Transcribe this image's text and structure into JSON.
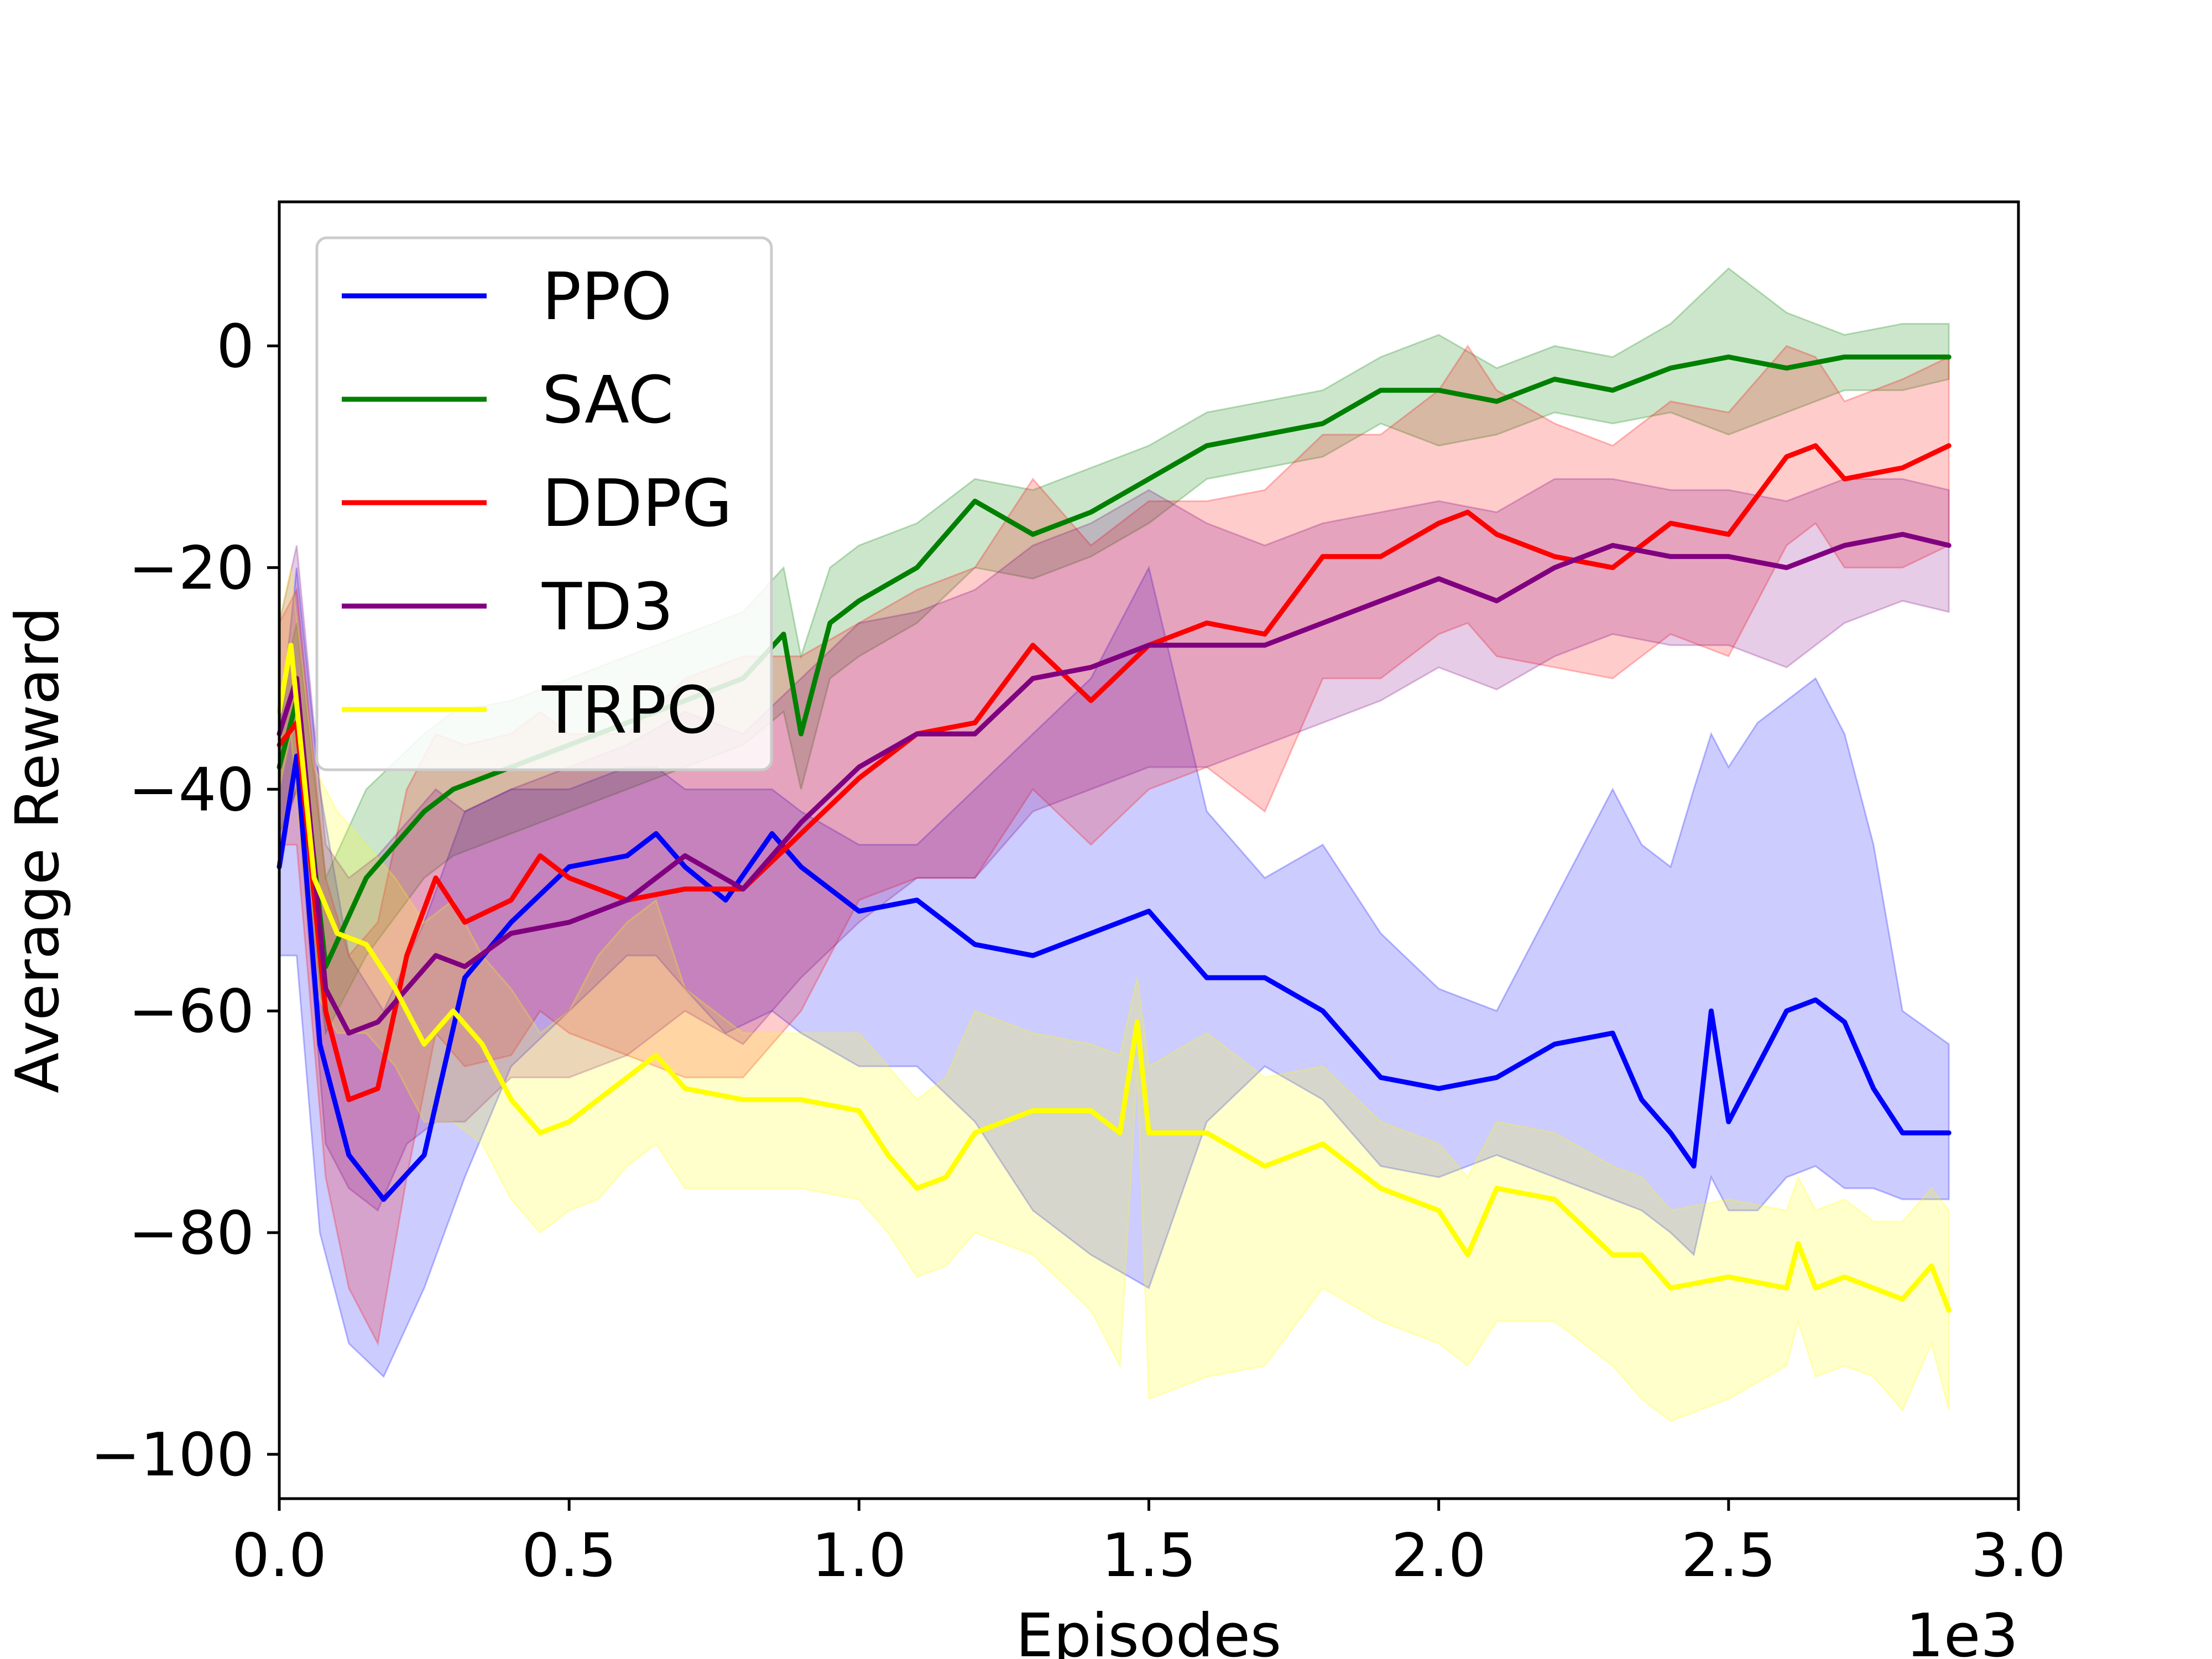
{
  "chart_data": {
    "type": "line",
    "title": "",
    "xlabel": "Episodes",
    "ylabel": "Average Reward",
    "x_multiplier": "1e3",
    "xlim": [
      0,
      3.0
    ],
    "ylim": [
      -104,
      13
    ],
    "x_ticks": [
      0.0,
      0.5,
      1.0,
      1.5,
      2.0,
      2.5,
      3.0
    ],
    "x_tick_labels": [
      "0.0",
      "0.5",
      "1.0",
      "1.5",
      "2.0",
      "2.5",
      "3.0"
    ],
    "y_ticks": [
      0,
      -20,
      -40,
      -60,
      -80,
      -100
    ],
    "y_tick_labels": [
      "0",
      "−20",
      "−40",
      "−60",
      "−80",
      "−100"
    ],
    "grid": false,
    "legend_position": "top-left",
    "series": [
      {
        "name": "PPO",
        "color": "#0000ff",
        "fill_color": "#0000ff",
        "x": [
          0.0,
          0.03,
          0.07,
          0.12,
          0.18,
          0.25,
          0.32,
          0.4,
          0.5,
          0.6,
          0.65,
          0.7,
          0.77,
          0.85,
          0.9,
          1.0,
          1.1,
          1.2,
          1.3,
          1.4,
          1.5,
          1.6,
          1.7,
          1.8,
          1.9,
          2.0,
          2.1,
          2.2,
          2.3,
          2.35,
          2.4,
          2.44,
          2.47,
          2.5,
          2.55,
          2.6,
          2.65,
          2.7,
          2.75,
          2.8,
          2.88
        ],
        "mean": [
          -47,
          -37,
          -63,
          -73,
          -77,
          -73,
          -57,
          -52,
          -47,
          -46,
          -44,
          -47,
          -50,
          -44,
          -47,
          -51,
          -50,
          -54,
          -55,
          -53,
          -51,
          -57,
          -57,
          -60,
          -66,
          -67,
          -66,
          -63,
          -62,
          -68,
          -71,
          -74,
          -60,
          -70,
          -65,
          -60,
          -59,
          -61,
          -67,
          -71,
          -71
        ],
        "upper": [
          -35,
          -20,
          -40,
          -55,
          -60,
          -52,
          -42,
          -40,
          -40,
          -38,
          -38,
          -40,
          -40,
          -40,
          -42,
          -45,
          -45,
          -40,
          -35,
          -30,
          -20,
          -42,
          -48,
          -45,
          -53,
          -58,
          -60,
          -50,
          -40,
          -45,
          -47,
          -40,
          -35,
          -38,
          -34,
          -32,
          -30,
          -35,
          -45,
          -60,
          -63
        ],
        "lower": [
          -55,
          -55,
          -80,
          -90,
          -93,
          -85,
          -75,
          -65,
          -60,
          -55,
          -55,
          -58,
          -62,
          -60,
          -62,
          -65,
          -65,
          -70,
          -78,
          -82,
          -85,
          -70,
          -65,
          -68,
          -74,
          -75,
          -73,
          -75,
          -77,
          -78,
          -80,
          -82,
          -75,
          -78,
          -78,
          -75,
          -74,
          -76,
          -76,
          -77,
          -77
        ]
      },
      {
        "name": "SAC",
        "color": "#008000",
        "fill_color": "#008000",
        "x": [
          0.0,
          0.03,
          0.08,
          0.15,
          0.25,
          0.3,
          0.4,
          0.5,
          0.6,
          0.7,
          0.8,
          0.87,
          0.9,
          0.95,
          1.0,
          1.1,
          1.2,
          1.3,
          1.4,
          1.5,
          1.6,
          1.7,
          1.8,
          1.9,
          2.0,
          2.1,
          2.2,
          2.3,
          2.4,
          2.5,
          2.6,
          2.7,
          2.8,
          2.88
        ],
        "mean": [
          -38,
          -32,
          -56,
          -48,
          -42,
          -40,
          -38,
          -36,
          -34,
          -32,
          -30,
          -26,
          -35,
          -25,
          -23,
          -20,
          -14,
          -17,
          -15,
          -12,
          -9,
          -8,
          -7,
          -4,
          -4,
          -5,
          -3,
          -4,
          -2,
          -1,
          -2,
          -1,
          -1,
          -1
        ],
        "upper": [
          -32,
          -25,
          -48,
          -40,
          -35,
          -33,
          -32,
          -30,
          -28,
          -26,
          -24,
          -20,
          -28,
          -20,
          -18,
          -16,
          -12,
          -13,
          -11,
          -9,
          -6,
          -5,
          -4,
          -1,
          1,
          -2,
          0,
          -1,
          2,
          7,
          3,
          1,
          2,
          2
        ],
        "lower": [
          -44,
          -40,
          -62,
          -55,
          -48,
          -46,
          -44,
          -42,
          -40,
          -38,
          -36,
          -33,
          -40,
          -30,
          -28,
          -25,
          -20,
          -21,
          -19,
          -16,
          -12,
          -11,
          -10,
          -7,
          -9,
          -8,
          -6,
          -7,
          -6,
          -8,
          -6,
          -4,
          -4,
          -3
        ]
      },
      {
        "name": "DDPG",
        "color": "#ff0000",
        "fill_color": "#ff0000",
        "x": [
          0.0,
          0.03,
          0.08,
          0.12,
          0.17,
          0.22,
          0.27,
          0.32,
          0.4,
          0.45,
          0.5,
          0.6,
          0.7,
          0.8,
          0.9,
          1.0,
          1.1,
          1.2,
          1.3,
          1.4,
          1.5,
          1.6,
          1.7,
          1.8,
          1.9,
          2.0,
          2.05,
          2.1,
          2.2,
          2.3,
          2.4,
          2.5,
          2.6,
          2.65,
          2.7,
          2.8,
          2.88
        ],
        "mean": [
          -36,
          -34,
          -60,
          -68,
          -67,
          -55,
          -48,
          -52,
          -50,
          -46,
          -48,
          -50,
          -49,
          -49,
          -44,
          -39,
          -35,
          -34,
          -27,
          -32,
          -27,
          -25,
          -26,
          -19,
          -19,
          -16,
          -15,
          -17,
          -19,
          -20,
          -16,
          -17,
          -10,
          -9,
          -12,
          -11,
          -9
        ],
        "upper": [
          -25,
          -22,
          -48,
          -55,
          -52,
          -40,
          -35,
          -36,
          -35,
          -33,
          -35,
          -35,
          -30,
          -28,
          -28,
          -25,
          -22,
          -20,
          -12,
          -18,
          -14,
          -14,
          -13,
          -8,
          -8,
          -4,
          0,
          -4,
          -7,
          -9,
          -5,
          -6,
          0,
          -1,
          -5,
          -3,
          -1
        ],
        "lower": [
          -45,
          -45,
          -75,
          -85,
          -90,
          -75,
          -62,
          -65,
          -64,
          -60,
          -62,
          -64,
          -66,
          -66,
          -60,
          -50,
          -48,
          -48,
          -40,
          -45,
          -40,
          -38,
          -42,
          -30,
          -30,
          -26,
          -25,
          -28,
          -29,
          -30,
          -26,
          -28,
          -18,
          -16,
          -20,
          -20,
          -18
        ]
      },
      {
        "name": "TD3",
        "color": "#800080",
        "fill_color": "#800080",
        "x": [
          0.0,
          0.03,
          0.08,
          0.12,
          0.17,
          0.22,
          0.27,
          0.32,
          0.4,
          0.5,
          0.6,
          0.7,
          0.8,
          0.9,
          1.0,
          1.1,
          1.2,
          1.3,
          1.4,
          1.5,
          1.6,
          1.7,
          1.8,
          1.9,
          2.0,
          2.1,
          2.2,
          2.3,
          2.4,
          2.5,
          2.6,
          2.7,
          2.8,
          2.88
        ],
        "mean": [
          -35,
          -30,
          -58,
          -62,
          -61,
          -58,
          -55,
          -56,
          -53,
          -52,
          -50,
          -46,
          -49,
          -43,
          -38,
          -35,
          -35,
          -30,
          -29,
          -27,
          -27,
          -27,
          -25,
          -23,
          -21,
          -23,
          -20,
          -18,
          -19,
          -19,
          -20,
          -18,
          -17,
          -18
        ],
        "upper": [
          -25,
          -18,
          -45,
          -48,
          -46,
          -43,
          -40,
          -42,
          -40,
          -38,
          -36,
          -33,
          -35,
          -30,
          -25,
          -24,
          -22,
          -18,
          -16,
          -13,
          -16,
          -18,
          -16,
          -15,
          -14,
          -15,
          -12,
          -12,
          -13,
          -13,
          -14,
          -12,
          -12,
          -13
        ],
        "lower": [
          -45,
          -40,
          -72,
          -76,
          -78,
          -72,
          -70,
          -70,
          -66,
          -66,
          -64,
          -60,
          -63,
          -57,
          -52,
          -48,
          -48,
          -42,
          -40,
          -38,
          -38,
          -36,
          -34,
          -32,
          -29,
          -31,
          -28,
          -26,
          -27,
          -27,
          -29,
          -25,
          -23,
          -24
        ]
      },
      {
        "name": "TRPO",
        "color": "#ffff00",
        "fill_color": "#ffff00",
        "x": [
          0.0,
          0.02,
          0.06,
          0.1,
          0.15,
          0.2,
          0.25,
          0.3,
          0.35,
          0.4,
          0.45,
          0.5,
          0.55,
          0.6,
          0.65,
          0.7,
          0.8,
          0.9,
          1.0,
          1.05,
          1.1,
          1.15,
          1.2,
          1.3,
          1.4,
          1.45,
          1.48,
          1.5,
          1.6,
          1.7,
          1.8,
          1.9,
          2.0,
          2.05,
          2.1,
          2.2,
          2.3,
          2.35,
          2.4,
          2.5,
          2.6,
          2.62,
          2.65,
          2.7,
          2.75,
          2.8,
          2.85,
          2.88
        ],
        "mean": [
          -33,
          -27,
          -48,
          -53,
          -54,
          -58,
          -63,
          -60,
          -63,
          -68,
          -71,
          -70,
          -68,
          -66,
          -64,
          -67,
          -68,
          -68,
          -69,
          -73,
          -76,
          -75,
          -71,
          -69,
          -69,
          -71,
          -61,
          -71,
          -71,
          -74,
          -72,
          -76,
          -78,
          -82,
          -76,
          -77,
          -82,
          -82,
          -85,
          -84,
          -85,
          -81,
          -85,
          -84,
          -85,
          -86,
          -83,
          -87
        ],
        "upper": [
          -25,
          -20,
          -38,
          -42,
          -45,
          -48,
          -52,
          -50,
          -55,
          -58,
          -62,
          -60,
          -55,
          -52,
          -50,
          -58,
          -62,
          -62,
          -62,
          -65,
          -68,
          -66,
          -60,
          -62,
          -63,
          -64,
          -57,
          -65,
          -62,
          -66,
          -65,
          -70,
          -72,
          -75,
          -70,
          -71,
          -74,
          -75,
          -78,
          -77,
          -78,
          -75,
          -78,
          -77,
          -79,
          -79,
          -76,
          -78
        ],
        "lower": [
          -40,
          -35,
          -58,
          -62,
          -62,
          -65,
          -70,
          -70,
          -72,
          -77,
          -80,
          -78,
          -77,
          -74,
          -72,
          -76,
          -76,
          -76,
          -77,
          -80,
          -84,
          -83,
          -80,
          -82,
          -87,
          -92,
          -65,
          -95,
          -93,
          -92,
          -85,
          -88,
          -90,
          -92,
          -88,
          -88,
          -92,
          -95,
          -97,
          -95,
          -92,
          -88,
          -93,
          -92,
          -93,
          -96,
          -90,
          -96
        ]
      }
    ]
  }
}
